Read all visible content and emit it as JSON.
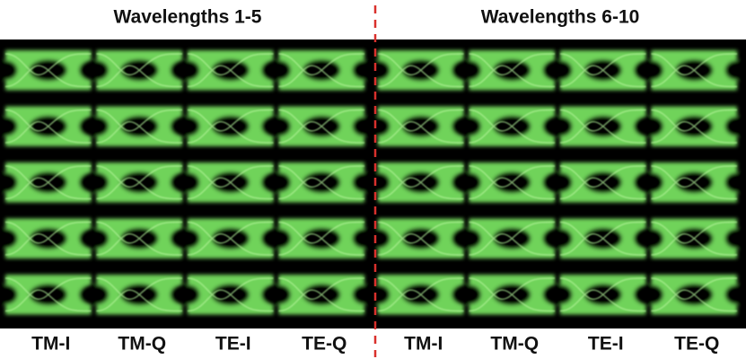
{
  "groups": [
    {
      "title": "Wavelengths 1-5",
      "columns": [
        "TM-I",
        "TM-Q",
        "TE-I",
        "TE-Q"
      ]
    },
    {
      "title": "Wavelengths 6-10",
      "columns": [
        "TM-I",
        "TM-Q",
        "TE-I",
        "TE-Q"
      ]
    }
  ]
}
